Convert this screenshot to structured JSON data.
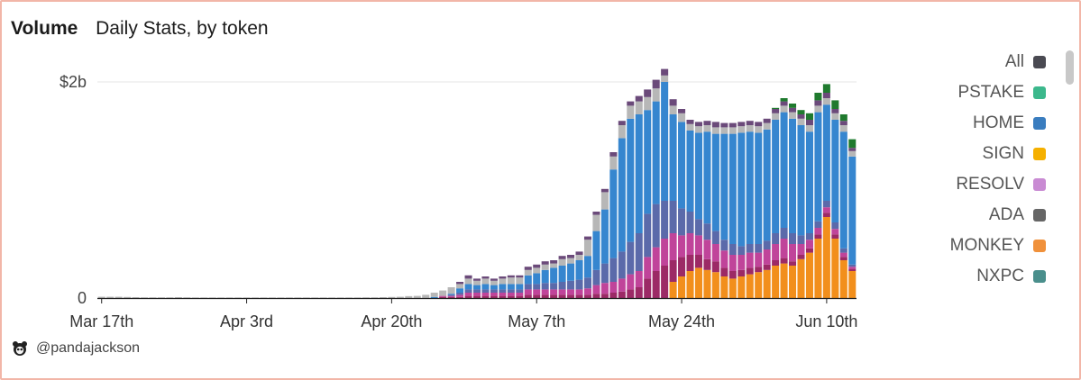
{
  "header": {
    "title": "Volume",
    "subtitle": "Daily Stats, by token"
  },
  "footer": {
    "handle": "@pandajackson"
  },
  "legend": [
    {
      "label": "All",
      "color": "#4a4a52"
    },
    {
      "label": "PSTAKE",
      "color": "#3cb88c"
    },
    {
      "label": "HOME",
      "color": "#3a7dbf"
    },
    {
      "label": "SIGN",
      "color": "#f5b000"
    },
    {
      "label": "RESOLV",
      "color": "#c98bd3"
    },
    {
      "label": "ADA",
      "color": "#666666"
    },
    {
      "label": "MONKEY",
      "color": "#f0913b"
    },
    {
      "label": "NXPC",
      "color": "#4a8f8c"
    }
  ],
  "chart_data": {
    "type": "bar",
    "stacked": true,
    "ylim": [
      0,
      2.0
    ],
    "yticks": [
      {
        "value": 0,
        "label": "0"
      },
      {
        "value": 2.0,
        "label": "$2b"
      }
    ],
    "x_tick_labels": [
      "Mar 17th",
      "Apr 3rd",
      "Apr 20th",
      "May 7th",
      "May 24th",
      "Jun 10th"
    ],
    "x_tick_indices": [
      0,
      17,
      34,
      51,
      68,
      85
    ],
    "series_colors": {
      "MONKEY": "#f28f1c",
      "PURPLE": "#9c2a66",
      "PINK": "#c0449a",
      "INDIGO": "#5b6aaa",
      "HOME": "#3686cf",
      "OTHER": "#b7b7b7",
      "TOP": "#6b4a7a",
      "GREEN": "#1f7a2e"
    },
    "days": [
      [
        0,
        0,
        0,
        0,
        0,
        0.012,
        0,
        0
      ],
      [
        0,
        0,
        0,
        0,
        0,
        0.012,
        0,
        0
      ],
      [
        0,
        0,
        0,
        0,
        0,
        0.012,
        0,
        0
      ],
      [
        0,
        0,
        0,
        0,
        0,
        0.01,
        0,
        0
      ],
      [
        0,
        0,
        0,
        0,
        0,
        0.008,
        0,
        0
      ],
      [
        0,
        0,
        0,
        0,
        0,
        0.006,
        0,
        0
      ],
      [
        0,
        0,
        0,
        0,
        0,
        0.006,
        0,
        0
      ],
      [
        0,
        0,
        0,
        0,
        0,
        0.006,
        0,
        0
      ],
      [
        0,
        0,
        0,
        0,
        0,
        0.006,
        0,
        0
      ],
      [
        0,
        0,
        0,
        0,
        0,
        0.008,
        0,
        0
      ],
      [
        0,
        0,
        0,
        0,
        0,
        0.006,
        0,
        0
      ],
      [
        0,
        0,
        0,
        0,
        0,
        0.005,
        0,
        0
      ],
      [
        0,
        0,
        0,
        0,
        0,
        0.005,
        0,
        0
      ],
      [
        0,
        0,
        0,
        0,
        0,
        0.005,
        0,
        0
      ],
      [
        0,
        0,
        0,
        0,
        0,
        0.005,
        0,
        0
      ],
      [
        0,
        0,
        0,
        0,
        0,
        0.005,
        0,
        0
      ],
      [
        0,
        0,
        0,
        0,
        0,
        0.005,
        0,
        0
      ],
      [
        0,
        0,
        0,
        0,
        0,
        0.005,
        0,
        0
      ],
      [
        0,
        0,
        0,
        0,
        0,
        0.005,
        0,
        0
      ],
      [
        0,
        0,
        0,
        0,
        0,
        0.005,
        0,
        0
      ],
      [
        0,
        0,
        0,
        0,
        0,
        0.005,
        0,
        0
      ],
      [
        0,
        0,
        0,
        0,
        0,
        0.005,
        0,
        0
      ],
      [
        0,
        0,
        0,
        0,
        0,
        0.005,
        0,
        0
      ],
      [
        0,
        0,
        0,
        0,
        0,
        0.005,
        0,
        0
      ],
      [
        0,
        0,
        0,
        0,
        0,
        0.005,
        0,
        0
      ],
      [
        0,
        0,
        0,
        0,
        0,
        0.005,
        0,
        0
      ],
      [
        0,
        0,
        0,
        0,
        0,
        0.005,
        0,
        0
      ],
      [
        0,
        0,
        0,
        0,
        0,
        0.005,
        0,
        0
      ],
      [
        0,
        0,
        0,
        0,
        0,
        0.005,
        0,
        0
      ],
      [
        0,
        0,
        0,
        0,
        0,
        0.005,
        0,
        0
      ],
      [
        0,
        0,
        0,
        0,
        0,
        0.005,
        0,
        0
      ],
      [
        0,
        0,
        0,
        0,
        0,
        0.006,
        0,
        0
      ],
      [
        0,
        0,
        0,
        0,
        0,
        0.006,
        0,
        0
      ],
      [
        0,
        0,
        0,
        0,
        0,
        0.008,
        0,
        0
      ],
      [
        0,
        0,
        0,
        0,
        0,
        0.01,
        0,
        0
      ],
      [
        0,
        0,
        0,
        0,
        0,
        0.012,
        0,
        0
      ],
      [
        0,
        0,
        0,
        0,
        0,
        0.018,
        0,
        0
      ],
      [
        0,
        0,
        0,
        0,
        0,
        0.02,
        0,
        0
      ],
      [
        0,
        0,
        0,
        0,
        0,
        0.03,
        0,
        0
      ],
      [
        0,
        0,
        0,
        0,
        0.01,
        0.04,
        0,
        0
      ],
      [
        0,
        0.01,
        0.01,
        0,
        0,
        0.05,
        0,
        0
      ],
      [
        0,
        0.01,
        0.01,
        0.01,
        0.01,
        0.06,
        0,
        0
      ],
      [
        0,
        0.01,
        0.02,
        0.02,
        0.04,
        0.04,
        0.02,
        0
      ],
      [
        0,
        0.02,
        0.03,
        0.03,
        0.05,
        0.05,
        0.03,
        0
      ],
      [
        0,
        0.02,
        0.03,
        0.03,
        0.04,
        0.04,
        0.02,
        0
      ],
      [
        0,
        0.02,
        0.03,
        0.03,
        0.05,
        0.05,
        0.02,
        0
      ],
      [
        0,
        0.02,
        0.03,
        0.03,
        0.04,
        0.04,
        0.02,
        0
      ],
      [
        0,
        0.02,
        0.03,
        0.03,
        0.05,
        0.05,
        0.02,
        0
      ],
      [
        0,
        0.02,
        0.03,
        0.03,
        0.05,
        0.06,
        0.02,
        0
      ],
      [
        0,
        0.02,
        0.03,
        0.03,
        0.05,
        0.06,
        0.02,
        0
      ],
      [
        0,
        0.03,
        0.05,
        0.05,
        0.08,
        0.05,
        0.03,
        0
      ],
      [
        0,
        0.03,
        0.05,
        0.05,
        0.1,
        0.05,
        0.03,
        0
      ],
      [
        0,
        0.03,
        0.05,
        0.06,
        0.12,
        0.05,
        0.03,
        0
      ],
      [
        0,
        0.03,
        0.05,
        0.06,
        0.14,
        0.04,
        0.03,
        0
      ],
      [
        0,
        0.03,
        0.05,
        0.07,
        0.15,
        0.06,
        0.03,
        0
      ],
      [
        0,
        0.03,
        0.05,
        0.08,
        0.16,
        0.05,
        0.03,
        0
      ],
      [
        0,
        0.03,
        0.05,
        0.09,
        0.18,
        0.05,
        0.03,
        0
      ],
      [
        0,
        0.03,
        0.06,
        0.1,
        0.2,
        0.15,
        0.03,
        0
      ],
      [
        0,
        0.04,
        0.08,
        0.14,
        0.36,
        0.15,
        0.03,
        0
      ],
      [
        0,
        0.04,
        0.1,
        0.18,
        0.5,
        0.16,
        0.03,
        0
      ],
      [
        0,
        0.05,
        0.1,
        0.22,
        0.82,
        0.12,
        0.04,
        0
      ],
      [
        0,
        0.06,
        0.12,
        0.25,
        1.05,
        0.12,
        0.04,
        0
      ],
      [
        0,
        0.08,
        0.14,
        0.3,
        1.14,
        0.12,
        0.04,
        0
      ],
      [
        0,
        0.1,
        0.15,
        0.35,
        1.1,
        0.12,
        0.05,
        0
      ],
      [
        0,
        0.18,
        0.2,
        0.4,
        0.96,
        0.12,
        0.07,
        0
      ],
      [
        0,
        0.25,
        0.22,
        0.4,
        0.95,
        0.12,
        0.08,
        0
      ],
      [
        0,
        0.3,
        0.25,
        0.35,
        1.1,
        0.06,
        0.06,
        0
      ],
      [
        0.15,
        0.2,
        0.25,
        0.3,
        0.8,
        0.08,
        0.06,
        0
      ],
      [
        0.2,
        0.18,
        0.2,
        0.25,
        0.8,
        0.08,
        0.04,
        0
      ],
      [
        0.25,
        0.15,
        0.2,
        0.2,
        0.75,
        0.06,
        0.04,
        0
      ],
      [
        0.28,
        0.12,
        0.18,
        0.15,
        0.8,
        0.06,
        0.04,
        0
      ],
      [
        0.26,
        0.1,
        0.18,
        0.15,
        0.85,
        0.06,
        0.04,
        0
      ],
      [
        0.24,
        0.1,
        0.16,
        0.12,
        0.9,
        0.06,
        0.05,
        0
      ],
      [
        0.2,
        0.08,
        0.16,
        0.1,
        0.98,
        0.06,
        0.04,
        0
      ],
      [
        0.18,
        0.07,
        0.15,
        0.1,
        1.02,
        0.06,
        0.04,
        0
      ],
      [
        0.2,
        0.06,
        0.14,
        0.08,
        1.05,
        0.06,
        0.04,
        0
      ],
      [
        0.22,
        0.06,
        0.14,
        0.08,
        1.04,
        0.06,
        0.04,
        0
      ],
      [
        0.24,
        0.05,
        0.13,
        0.08,
        1.03,
        0.06,
        0.04,
        0
      ],
      [
        0.26,
        0.05,
        0.14,
        0.08,
        1.03,
        0.06,
        0.04,
        0
      ],
      [
        0.3,
        0.05,
        0.15,
        0.1,
        1.05,
        0.06,
        0.04,
        0.01
      ],
      [
        0.32,
        0.05,
        0.18,
        0.1,
        1.07,
        0.06,
        0.04,
        0.03
      ],
      [
        0.3,
        0.04,
        0.16,
        0.1,
        1.06,
        0.06,
        0.04,
        0.04
      ],
      [
        0.36,
        0.04,
        0.1,
        0.08,
        1.02,
        0.06,
        0.04,
        0.04
      ],
      [
        0.42,
        0.04,
        0.08,
        0.06,
        0.94,
        0.06,
        0.05,
        0.06
      ],
      [
        0.55,
        0.04,
        0.06,
        0.06,
        1.01,
        0.06,
        0.05,
        0.07
      ],
      [
        0.75,
        0.04,
        0.05,
        0.06,
        0.89,
        0.06,
        0.05,
        0.08
      ],
      [
        0.55,
        0.04,
        0.05,
        0.06,
        0.95,
        0.06,
        0.04,
        0.08
      ],
      [
        0.35,
        0.03,
        0.04,
        0.04,
        1.08,
        0.06,
        0.04,
        0.06
      ],
      [
        0.25,
        0.02,
        0.02,
        0.02,
        1.0,
        0.05,
        0.03,
        0.08
      ]
    ]
  }
}
